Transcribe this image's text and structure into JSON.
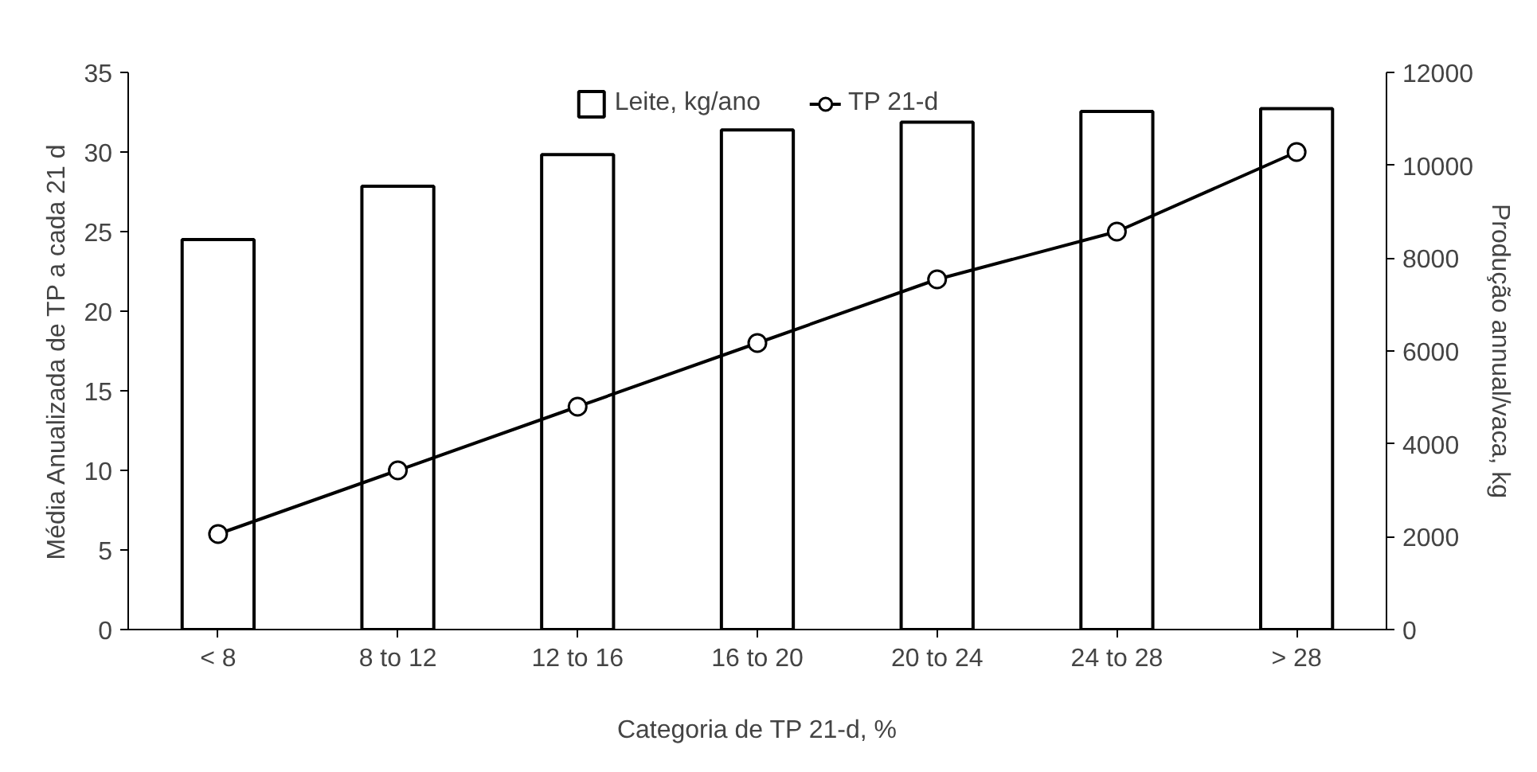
{
  "chart_data": {
    "type": "bar",
    "xlabel": "Categoria de TP 21-d, %",
    "ylabel": "Média Anualizada de TP a cada 21 d",
    "y2label": "Produção annual/vaca, kg",
    "categories": [
      "< 8",
      "8 to 12",
      "12 to 16",
      "16 to 20",
      "20 to 24",
      "24 to 28",
      "> 28"
    ],
    "series": [
      {
        "name": "Leite, kg/ano",
        "axis": "y2",
        "color": "#ffffff",
        "values": [
          8400,
          9550,
          10230,
          10760,
          10930,
          11160,
          11220
        ]
      },
      {
        "name": "TP 21-d",
        "type": "line",
        "color": "#000000",
        "marker": "circle",
        "values": [
          6,
          10,
          14,
          18,
          22,
          25,
          30
        ]
      }
    ],
    "ylim": [
      0,
      35
    ],
    "yticks": [
      0,
      5,
      10,
      15,
      20,
      25,
      30,
      35
    ],
    "y2lim": [
      0,
      12000
    ],
    "y2ticks": [
      0,
      2000,
      4000,
      6000,
      8000,
      10000,
      12000
    ],
    "grid": false,
    "legend": "top"
  }
}
